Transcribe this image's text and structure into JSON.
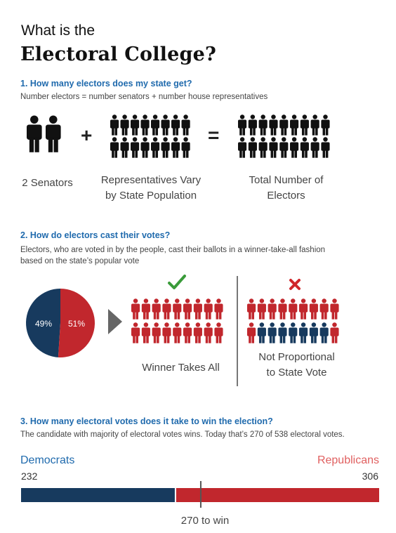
{
  "title": {
    "line1": "What is the",
    "line2": "Electoral College?"
  },
  "section1": {
    "question": "1. How many electors does my state get?",
    "formula": "Number electors = number senators + number house representatives",
    "plus": "+",
    "equals": "=",
    "caption_senators": "2 Senators",
    "caption_reps_1": "Representatives Vary",
    "caption_reps_2": "by State Population",
    "caption_total_1": "Total Number of",
    "caption_total_2": "Electors"
  },
  "section2": {
    "question": "2. How do electors cast their votes?",
    "desc_1": "Electors, who are voted in by the people, cast their ballots in a winner-take-all fashion",
    "desc_2": "based on the state’s popular vote",
    "pie": {
      "dem_pct": 49,
      "rep_pct": 51,
      "dem_label": "49%",
      "rep_label": "51%"
    },
    "winner_caption": "Winner Takes All",
    "not_prop_1": "Not Proportional",
    "not_prop_2": "to State Vote",
    "check_icon": "check-icon",
    "cross_icon": "cross-icon"
  },
  "section3": {
    "question": "3. How many electoral votes does it take to win the election?",
    "desc": "The candidate with majority of electoral votes wins. Today that’s 270 of 538 electoral votes.",
    "dem_name": "Democrats",
    "rep_name": "Republicans",
    "dem_votes": "232",
    "rep_votes": "306",
    "threshold_label": "270 to win",
    "dem_value": 232,
    "rep_value": 306,
    "threshold_value": 270,
    "total_value": 538
  },
  "colors": {
    "blue": "#173a5e",
    "red": "#c1272d",
    "accent": "#1f6aad",
    "check": "#3a9b3a"
  }
}
